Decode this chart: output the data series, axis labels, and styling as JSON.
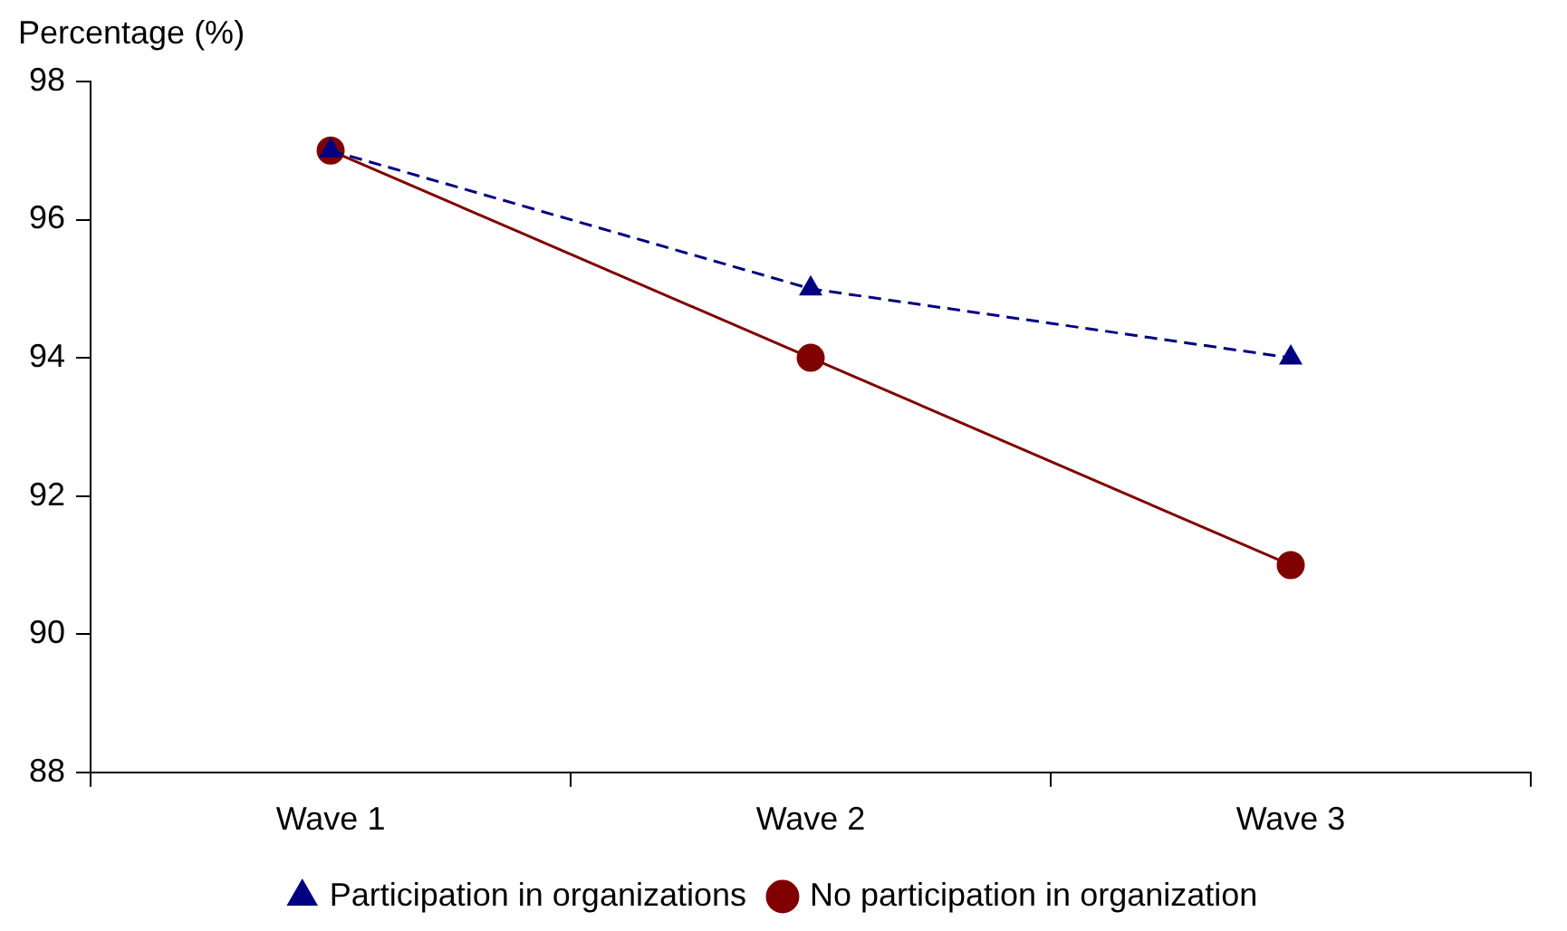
{
  "chart_data": {
    "type": "line",
    "ylabel": "Percentage (%)",
    "categories": [
      "Wave 1",
      "Wave 2",
      "Wave 3"
    ],
    "series": [
      {
        "name": "Participation in organizations",
        "color": "#000080",
        "values": [
          97,
          95,
          94
        ],
        "marker": "triangle",
        "line_style": "dashed"
      },
      {
        "name": "No participation in organization",
        "color": "#800000",
        "values": [
          97,
          94,
          91
        ],
        "marker": "circle",
        "line_style": "solid"
      }
    ],
    "ylim": [
      88,
      98
    ],
    "yticks": [
      88,
      90,
      92,
      94,
      96,
      98
    ],
    "grid": false,
    "legend": "bottom"
  }
}
